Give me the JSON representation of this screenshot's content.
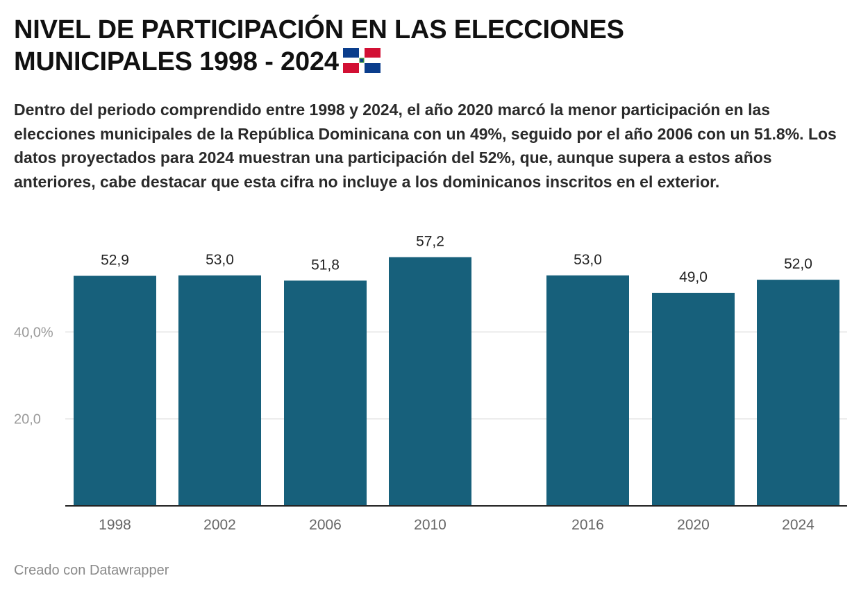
{
  "header": {
    "title_line1": "NIVEL DE PARTICIPACIÓN EN LAS ELECCIONES",
    "title_line2": "MUNICIPALES 1998 - 2024",
    "subtitle": "Dentro del periodo comprendido entre 1998 y 2024, el año 2020 marcó la menor participación en las elecciones municipales de la República Dominicana con un 49%, seguido por el año 2006 con un 51.8%. Los datos proyectados para 2024 muestran una participación del 52%, que, aunque supera a estos años anteriores, cabe destacar que esta cifra no incluye a los dominicanos inscritos en el exterior."
  },
  "footer": {
    "credit": "Creado con Datawrapper"
  },
  "colors": {
    "bar": "#17607b",
    "grid": "#e3e3e3",
    "axis": "#222222",
    "tick_label": "#9a9a9a",
    "category_label": "#666666"
  },
  "chart_data": {
    "type": "bar",
    "categories": [
      "1998",
      "2002",
      "2006",
      "2010",
      "2016",
      "2020",
      "2024"
    ],
    "values": [
      52.9,
      53.0,
      51.8,
      57.2,
      53.0,
      49.0,
      52.0
    ],
    "value_labels": [
      "52,9",
      "53,0",
      "51,8",
      "57,2",
      "53,0",
      "49,0",
      "52,0"
    ],
    "ylim": [
      0,
      60
    ],
    "yticks": [
      {
        "value": 20,
        "label": "20,0"
      },
      {
        "value": 40,
        "label": "40,0%"
      }
    ],
    "grid": true,
    "title": "",
    "xlabel": "",
    "ylabel": ""
  }
}
